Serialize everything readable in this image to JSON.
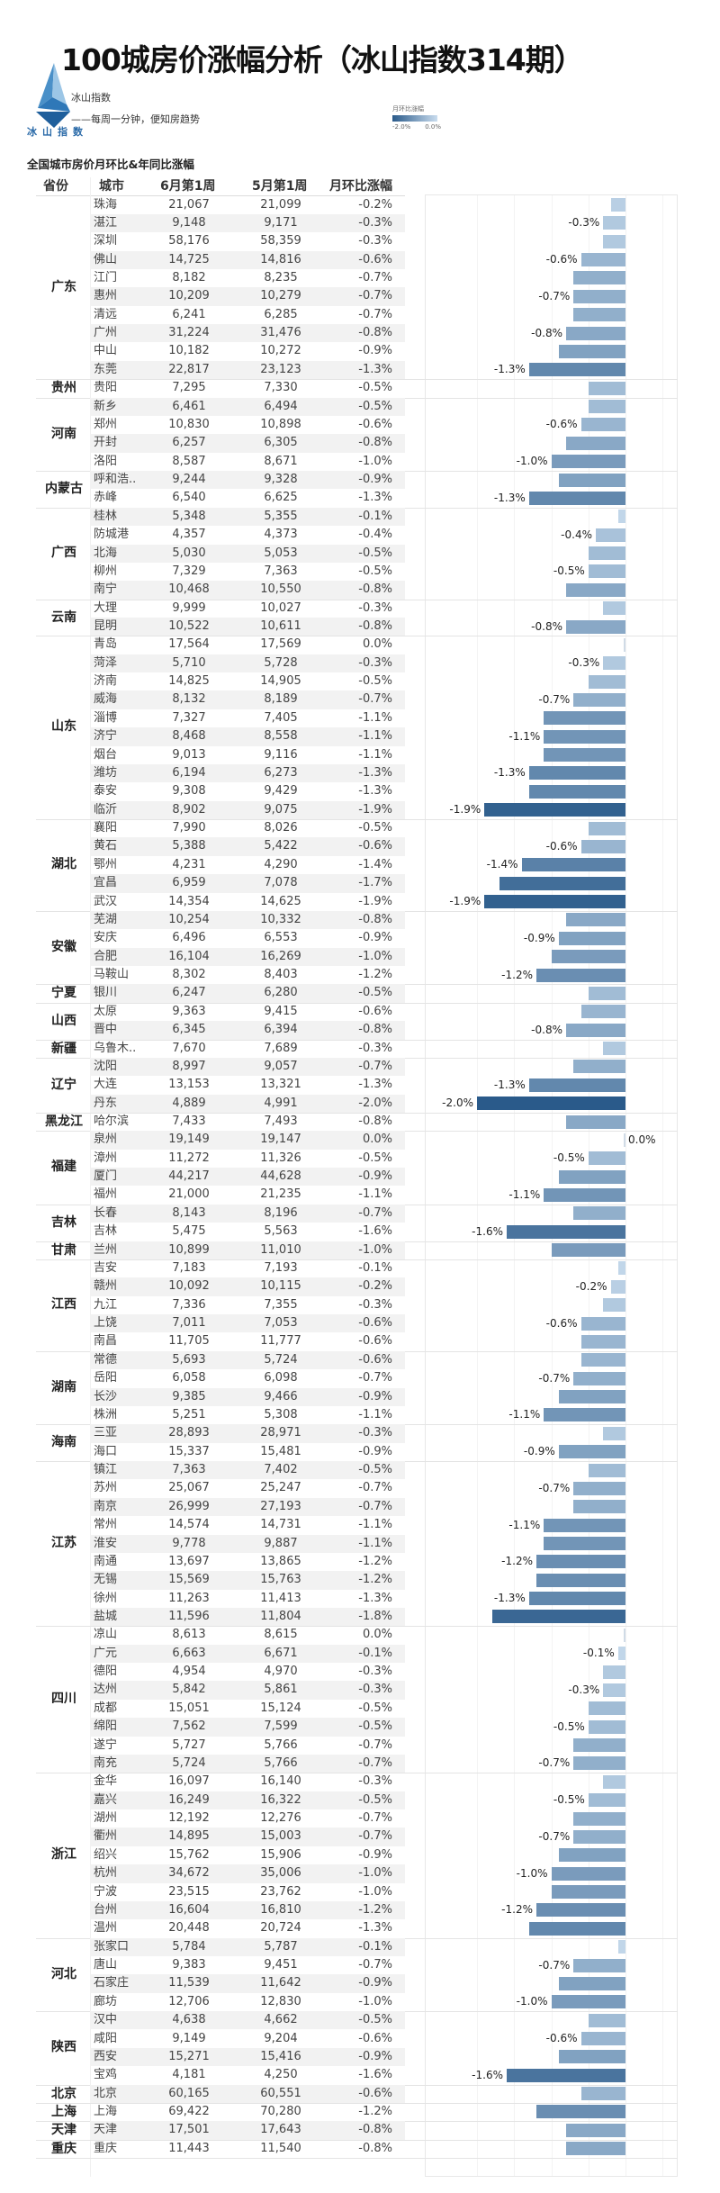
{
  "header": {
    "title": "100城房价涨幅分析（冰山指数314期）",
    "brand": "冰山指数",
    "slogan": "——每周一分钟，便知房趋势",
    "logo_text": "冰山指数",
    "subtitle": "全国城市房价月环比&年同比涨幅"
  },
  "legend": {
    "title": "月环比涨幅",
    "min_label": "-2.0%",
    "max_label": "0.0%",
    "color_min": "#2a5a8a",
    "color_max": "#c9dcee"
  },
  "columns": {
    "province": "省份",
    "city": "城市",
    "jun": "6月第1周",
    "may": "5月第1周",
    "mom": "月环比涨幅"
  },
  "chart_data": {
    "type": "bar",
    "orientation": "horizontal",
    "value_field": "月环比涨幅 (%)",
    "xlim": [
      -2.2,
      0.7
    ],
    "color_scale": [
      "#2a5a8a",
      "#c9dcee"
    ],
    "groups": [
      {
        "province": "广东",
        "cities": [
          {
            "city": "珠海",
            "jun": "21,067",
            "may": "21,099",
            "mom": -0.2,
            "label": false
          },
          {
            "city": "湛江",
            "jun": "9,148",
            "may": "9,171",
            "mom": -0.3,
            "label": true
          },
          {
            "city": "深圳",
            "jun": "58,176",
            "may": "58,359",
            "mom": -0.3,
            "label": false
          },
          {
            "city": "佛山",
            "jun": "14,725",
            "may": "14,816",
            "mom": -0.6,
            "label": true
          },
          {
            "city": "江门",
            "jun": "8,182",
            "may": "8,235",
            "mom": -0.7,
            "label": false
          },
          {
            "city": "惠州",
            "jun": "10,209",
            "may": "10,279",
            "mom": -0.7,
            "label": true
          },
          {
            "city": "清远",
            "jun": "6,241",
            "may": "6,285",
            "mom": -0.7,
            "label": false
          },
          {
            "city": "广州",
            "jun": "31,224",
            "may": "31,476",
            "mom": -0.8,
            "label": true
          },
          {
            "city": "中山",
            "jun": "10,182",
            "may": "10,272",
            "mom": -0.9,
            "label": false
          },
          {
            "city": "东莞",
            "jun": "22,817",
            "may": "23,123",
            "mom": -1.3,
            "label": true
          }
        ]
      },
      {
        "province": "贵州",
        "cities": [
          {
            "city": "贵阳",
            "jun": "7,295",
            "may": "7,330",
            "mom": -0.5,
            "label": false
          }
        ]
      },
      {
        "province": "河南",
        "cities": [
          {
            "city": "新乡",
            "jun": "6,461",
            "may": "6,494",
            "mom": -0.5,
            "label": false
          },
          {
            "city": "郑州",
            "jun": "10,830",
            "may": "10,898",
            "mom": -0.6,
            "label": true
          },
          {
            "city": "开封",
            "jun": "6,257",
            "may": "6,305",
            "mom": -0.8,
            "label": false
          },
          {
            "city": "洛阳",
            "jun": "8,587",
            "may": "8,671",
            "mom": -1.0,
            "label": true
          }
        ]
      },
      {
        "province": "内蒙古",
        "cities": [
          {
            "city": "呼和浩..",
            "jun": "9,244",
            "may": "9,328",
            "mom": -0.9,
            "label": false
          },
          {
            "city": "赤峰",
            "jun": "6,540",
            "may": "6,625",
            "mom": -1.3,
            "label": true
          }
        ]
      },
      {
        "province": "广西",
        "cities": [
          {
            "city": "桂林",
            "jun": "5,348",
            "may": "5,355",
            "mom": -0.1,
            "label": false
          },
          {
            "city": "防城港",
            "jun": "4,357",
            "may": "4,373",
            "mom": -0.4,
            "label": true
          },
          {
            "city": "北海",
            "jun": "5,030",
            "may": "5,053",
            "mom": -0.5,
            "label": false
          },
          {
            "city": "柳州",
            "jun": "7,329",
            "may": "7,363",
            "mom": -0.5,
            "label": true
          },
          {
            "city": "南宁",
            "jun": "10,468",
            "may": "10,550",
            "mom": -0.8,
            "label": false
          }
        ]
      },
      {
        "province": "云南",
        "cities": [
          {
            "city": "大理",
            "jun": "9,999",
            "may": "10,027",
            "mom": -0.3,
            "label": false
          },
          {
            "city": "昆明",
            "jun": "10,522",
            "may": "10,611",
            "mom": -0.8,
            "label": true
          }
        ]
      },
      {
        "province": "山东",
        "cities": [
          {
            "city": "青岛",
            "jun": "17,564",
            "may": "17,569",
            "mom": 0.0,
            "label": false
          },
          {
            "city": "菏泽",
            "jun": "5,710",
            "may": "5,728",
            "mom": -0.3,
            "label": true
          },
          {
            "city": "济南",
            "jun": "14,825",
            "may": "14,905",
            "mom": -0.5,
            "label": false
          },
          {
            "city": "威海",
            "jun": "8,132",
            "may": "8,189",
            "mom": -0.7,
            "label": true
          },
          {
            "city": "淄博",
            "jun": "7,327",
            "may": "7,405",
            "mom": -1.1,
            "label": false
          },
          {
            "city": "济宁",
            "jun": "8,468",
            "may": "8,558",
            "mom": -1.1,
            "label": true
          },
          {
            "city": "烟台",
            "jun": "9,013",
            "may": "9,116",
            "mom": -1.1,
            "label": false
          },
          {
            "city": "潍坊",
            "jun": "6,194",
            "may": "6,273",
            "mom": -1.3,
            "label": true
          },
          {
            "city": "泰安",
            "jun": "9,308",
            "may": "9,429",
            "mom": -1.3,
            "label": false
          },
          {
            "city": "临沂",
            "jun": "8,902",
            "may": "9,075",
            "mom": -1.9,
            "label": true
          }
        ]
      },
      {
        "province": "湖北",
        "cities": [
          {
            "city": "襄阳",
            "jun": "7,990",
            "may": "8,026",
            "mom": -0.5,
            "label": false
          },
          {
            "city": "黄石",
            "jun": "5,388",
            "may": "5,422",
            "mom": -0.6,
            "label": true
          },
          {
            "city": "鄂州",
            "jun": "4,231",
            "may": "4,290",
            "mom": -1.4,
            "label": true
          },
          {
            "city": "宜昌",
            "jun": "6,959",
            "may": "7,078",
            "mom": -1.7,
            "label": false
          },
          {
            "city": "武汉",
            "jun": "14,354",
            "may": "14,625",
            "mom": -1.9,
            "label": true
          }
        ]
      },
      {
        "province": "安徽",
        "cities": [
          {
            "city": "芜湖",
            "jun": "10,254",
            "may": "10,332",
            "mom": -0.8,
            "label": false
          },
          {
            "city": "安庆",
            "jun": "6,496",
            "may": "6,553",
            "mom": -0.9,
            "label": true
          },
          {
            "city": "合肥",
            "jun": "16,104",
            "may": "16,269",
            "mom": -1.0,
            "label": false
          },
          {
            "city": "马鞍山",
            "jun": "8,302",
            "may": "8,403",
            "mom": -1.2,
            "label": true
          }
        ]
      },
      {
        "province": "宁夏",
        "cities": [
          {
            "city": "银川",
            "jun": "6,247",
            "may": "6,280",
            "mom": -0.5,
            "label": false
          }
        ]
      },
      {
        "province": "山西",
        "cities": [
          {
            "city": "太原",
            "jun": "9,363",
            "may": "9,415",
            "mom": -0.6,
            "label": false
          },
          {
            "city": "晋中",
            "jun": "6,345",
            "may": "6,394",
            "mom": -0.8,
            "label": true
          }
        ]
      },
      {
        "province": "新疆",
        "cities": [
          {
            "city": "乌鲁木..",
            "jun": "7,670",
            "may": "7,689",
            "mom": -0.3,
            "label": false
          }
        ]
      },
      {
        "province": "辽宁",
        "cities": [
          {
            "city": "沈阳",
            "jun": "8,997",
            "may": "9,057",
            "mom": -0.7,
            "label": false
          },
          {
            "city": "大连",
            "jun": "13,153",
            "may": "13,321",
            "mom": -1.3,
            "label": true
          },
          {
            "city": "丹东",
            "jun": "4,889",
            "may": "4,991",
            "mom": -2.0,
            "label": true
          }
        ]
      },
      {
        "province": "黑龙江",
        "cities": [
          {
            "city": "哈尔滨",
            "jun": "7,433",
            "may": "7,493",
            "mom": -0.8,
            "label": false
          }
        ]
      },
      {
        "province": "福建",
        "cities": [
          {
            "city": "泉州",
            "jun": "19,149",
            "may": "19,147",
            "mom": 0.0,
            "label": true
          },
          {
            "city": "漳州",
            "jun": "11,272",
            "may": "11,326",
            "mom": -0.5,
            "label": true
          },
          {
            "city": "厦门",
            "jun": "44,217",
            "may": "44,628",
            "mom": -0.9,
            "label": false
          },
          {
            "city": "福州",
            "jun": "21,000",
            "may": "21,235",
            "mom": -1.1,
            "label": true
          }
        ]
      },
      {
        "province": "吉林",
        "cities": [
          {
            "city": "长春",
            "jun": "8,143",
            "may": "8,196",
            "mom": -0.7,
            "label": false
          },
          {
            "city": "吉林",
            "jun": "5,475",
            "may": "5,563",
            "mom": -1.6,
            "label": true
          }
        ]
      },
      {
        "province": "甘肃",
        "cities": [
          {
            "city": "兰州",
            "jun": "10,899",
            "may": "11,010",
            "mom": -1.0,
            "label": false
          }
        ]
      },
      {
        "province": "江西",
        "cities": [
          {
            "city": "吉安",
            "jun": "7,183",
            "may": "7,193",
            "mom": -0.1,
            "label": false
          },
          {
            "city": "赣州",
            "jun": "10,092",
            "may": "10,115",
            "mom": -0.2,
            "label": true
          },
          {
            "city": "九江",
            "jun": "7,336",
            "may": "7,355",
            "mom": -0.3,
            "label": false
          },
          {
            "city": "上饶",
            "jun": "7,011",
            "may": "7,053",
            "mom": -0.6,
            "label": true
          },
          {
            "city": "南昌",
            "jun": "11,705",
            "may": "11,777",
            "mom": -0.6,
            "label": false
          }
        ]
      },
      {
        "province": "湖南",
        "cities": [
          {
            "city": "常德",
            "jun": "5,693",
            "may": "5,724",
            "mom": -0.6,
            "label": false
          },
          {
            "city": "岳阳",
            "jun": "6,058",
            "may": "6,098",
            "mom": -0.7,
            "label": true
          },
          {
            "city": "长沙",
            "jun": "9,385",
            "may": "9,466",
            "mom": -0.9,
            "label": false
          },
          {
            "city": "株洲",
            "jun": "5,251",
            "may": "5,308",
            "mom": -1.1,
            "label": true
          }
        ]
      },
      {
        "province": "海南",
        "cities": [
          {
            "city": "三亚",
            "jun": "28,893",
            "may": "28,971",
            "mom": -0.3,
            "label": false
          },
          {
            "city": "海口",
            "jun": "15,337",
            "may": "15,481",
            "mom": -0.9,
            "label": true
          }
        ]
      },
      {
        "province": "江苏",
        "cities": [
          {
            "city": "镇江",
            "jun": "7,363",
            "may": "7,402",
            "mom": -0.5,
            "label": false
          },
          {
            "city": "苏州",
            "jun": "25,067",
            "may": "25,247",
            "mom": -0.7,
            "label": true
          },
          {
            "city": "南京",
            "jun": "26,999",
            "may": "27,193",
            "mom": -0.7,
            "label": false
          },
          {
            "city": "常州",
            "jun": "14,574",
            "may": "14,731",
            "mom": -1.1,
            "label": true
          },
          {
            "city": "淮安",
            "jun": "9,778",
            "may": "9,887",
            "mom": -1.1,
            "label": false
          },
          {
            "city": "南通",
            "jun": "13,697",
            "may": "13,865",
            "mom": -1.2,
            "label": true
          },
          {
            "city": "无锡",
            "jun": "15,569",
            "may": "15,763",
            "mom": -1.2,
            "label": false
          },
          {
            "city": "徐州",
            "jun": "11,263",
            "may": "11,413",
            "mom": -1.3,
            "label": true
          },
          {
            "city": "盐城",
            "jun": "11,596",
            "may": "11,804",
            "mom": -1.8,
            "label": false
          }
        ]
      },
      {
        "province": "四川",
        "cities": [
          {
            "city": "凉山",
            "jun": "8,613",
            "may": "8,615",
            "mom": 0.0,
            "label": false
          },
          {
            "city": "广元",
            "jun": "6,663",
            "may": "6,671",
            "mom": -0.1,
            "label": true
          },
          {
            "city": "德阳",
            "jun": "4,954",
            "may": "4,970",
            "mom": -0.3,
            "label": false
          },
          {
            "city": "达州",
            "jun": "5,842",
            "may": "5,861",
            "mom": -0.3,
            "label": true
          },
          {
            "city": "成都",
            "jun": "15,051",
            "may": "15,124",
            "mom": -0.5,
            "label": false
          },
          {
            "city": "绵阳",
            "jun": "7,562",
            "may": "7,599",
            "mom": -0.5,
            "label": true
          },
          {
            "city": "遂宁",
            "jun": "5,727",
            "may": "5,766",
            "mom": -0.7,
            "label": false
          },
          {
            "city": "南充",
            "jun": "5,724",
            "may": "5,766",
            "mom": -0.7,
            "label": true
          }
        ]
      },
      {
        "province": "浙江",
        "cities": [
          {
            "city": "金华",
            "jun": "16,097",
            "may": "16,140",
            "mom": -0.3,
            "label": false
          },
          {
            "city": "嘉兴",
            "jun": "16,249",
            "may": "16,322",
            "mom": -0.5,
            "label": true
          },
          {
            "city": "湖州",
            "jun": "12,192",
            "may": "12,276",
            "mom": -0.7,
            "label": false
          },
          {
            "city": "衢州",
            "jun": "14,895",
            "may": "15,003",
            "mom": -0.7,
            "label": true
          },
          {
            "city": "绍兴",
            "jun": "15,762",
            "may": "15,906",
            "mom": -0.9,
            "label": false
          },
          {
            "city": "杭州",
            "jun": "34,672",
            "may": "35,006",
            "mom": -1.0,
            "label": true
          },
          {
            "city": "宁波",
            "jun": "23,515",
            "may": "23,762",
            "mom": -1.0,
            "label": false
          },
          {
            "city": "台州",
            "jun": "16,604",
            "may": "16,810",
            "mom": -1.2,
            "label": true
          },
          {
            "city": "温州",
            "jun": "20,448",
            "may": "20,724",
            "mom": -1.3,
            "label": false
          }
        ]
      },
      {
        "province": "河北",
        "cities": [
          {
            "city": "张家口",
            "jun": "5,784",
            "may": "5,787",
            "mom": -0.1,
            "label": false
          },
          {
            "city": "唐山",
            "jun": "9,383",
            "may": "9,451",
            "mom": -0.7,
            "label": true
          },
          {
            "city": "石家庄",
            "jun": "11,539",
            "may": "11,642",
            "mom": -0.9,
            "label": false
          },
          {
            "city": "廊坊",
            "jun": "12,706",
            "may": "12,830",
            "mom": -1.0,
            "label": true
          }
        ]
      },
      {
        "province": "陕西",
        "cities": [
          {
            "city": "汉中",
            "jun": "4,638",
            "may": "4,662",
            "mom": -0.5,
            "label": false
          },
          {
            "city": "咸阳",
            "jun": "9,149",
            "may": "9,204",
            "mom": -0.6,
            "label": true
          },
          {
            "city": "西安",
            "jun": "15,271",
            "may": "15,416",
            "mom": -0.9,
            "label": false
          },
          {
            "city": "宝鸡",
            "jun": "4,181",
            "may": "4,250",
            "mom": -1.6,
            "label": true
          }
        ]
      },
      {
        "province": "北京",
        "cities": [
          {
            "city": "北京",
            "jun": "60,165",
            "may": "60,551",
            "mom": -0.6,
            "label": false
          }
        ]
      },
      {
        "province": "上海",
        "cities": [
          {
            "city": "上海",
            "jun": "69,422",
            "may": "70,280",
            "mom": -1.2,
            "label": false
          }
        ]
      },
      {
        "province": "天津",
        "cities": [
          {
            "city": "天津",
            "jun": "17,501",
            "may": "17,643",
            "mom": -0.8,
            "label": false
          }
        ]
      },
      {
        "province": "重庆",
        "cities": [
          {
            "city": "重庆",
            "jun": "11,443",
            "may": "11,540",
            "mom": -0.8,
            "label": false
          }
        ]
      }
    ]
  }
}
